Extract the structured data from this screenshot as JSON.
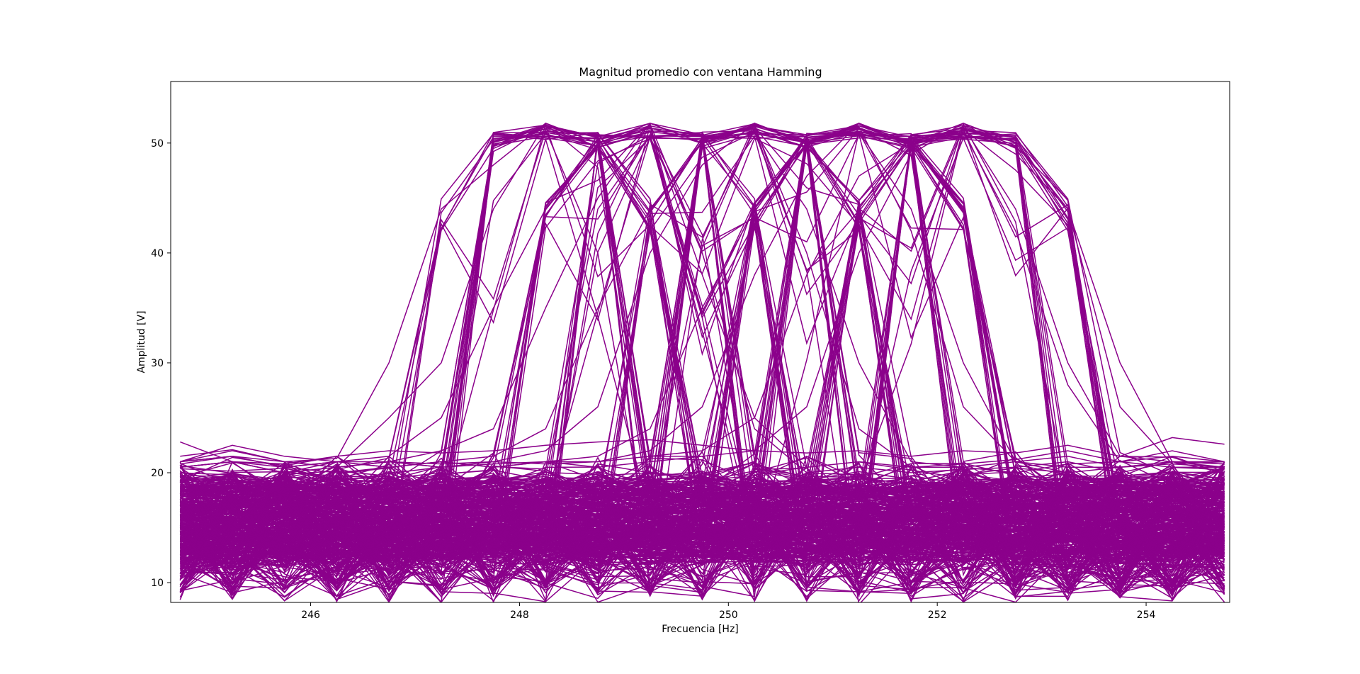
{
  "chart_data": {
    "type": "line",
    "title": "Magnitud promedio con ventana Hamming",
    "xlabel": "Frecuencia [Hz]",
    "ylabel": "Amplitud [V]",
    "x": [
      244.75,
      245.25,
      245.75,
      246.25,
      246.75,
      247.25,
      247.75,
      248.25,
      248.75,
      249.25,
      249.75,
      250.25,
      250.75,
      251.25,
      251.75,
      252.25,
      252.75,
      253.25,
      253.75,
      254.25,
      254.75
    ],
    "xlim": [
      244.66,
      254.8
    ],
    "ylim": [
      8.2,
      55.6
    ],
    "xticks": [
      246,
      248,
      250,
      252,
      254
    ],
    "yticks": [
      10,
      20,
      30,
      40,
      50
    ],
    "grid": false,
    "line_color": "#8b008b",
    "peak_frequencies": [
      248.25,
      249.25,
      250.25,
      251.25,
      252.25
    ],
    "peak_amplitude": 51.8,
    "series_count": 400,
    "series": [
      {
        "values": [
          21.5,
          22.1,
          21.0,
          21.3,
          30.0,
          44.0,
          48.0,
          51.8,
          50.0,
          51.5,
          38.0,
          25.0,
          20.5,
          21.0,
          20.5,
          20.8,
          21.2,
          22.0,
          21.0,
          22.0,
          21.0
        ]
      },
      {
        "values": [
          20.5,
          21.0,
          20.0,
          20.5,
          25.0,
          30.0,
          44.0,
          51.8,
          50.0,
          51.0,
          40.0,
          24.0,
          20.0,
          20.5,
          20.0,
          20.3,
          20.5,
          21.0,
          20.0,
          21.0,
          20.0
        ]
      },
      {
        "values": [
          21.0,
          22.5,
          21.5,
          21.0,
          21.5,
          25.0,
          35.0,
          44.0,
          50.0,
          51.8,
          50.0,
          51.5,
          40.0,
          24.0,
          20.5,
          20.5,
          20.0,
          20.8,
          21.0,
          21.5,
          21.0
        ]
      },
      {
        "values": [
          20.8,
          21.5,
          20.5,
          21.0,
          21.0,
          22.0,
          24.0,
          35.0,
          45.0,
          51.8,
          50.0,
          51.0,
          44.0,
          30.0,
          21.0,
          20.5,
          21.0,
          20.0,
          20.5,
          20.8,
          20.5
        ]
      },
      {
        "values": [
          20.5,
          21.0,
          20.5,
          20.0,
          20.5,
          21.0,
          21.5,
          24.0,
          35.0,
          44.0,
          50.0,
          51.8,
          50.0,
          51.0,
          44.0,
          30.0,
          21.0,
          20.5,
          20.5,
          21.0,
          20.8
        ]
      },
      {
        "values": [
          21.0,
          21.5,
          21.0,
          20.5,
          21.0,
          20.8,
          21.0,
          22.0,
          26.0,
          40.0,
          48.0,
          51.8,
          50.0,
          51.5,
          42.0,
          26.0,
          21.0,
          21.5,
          20.5,
          21.0,
          21.0
        ]
      },
      {
        "values": [
          20.5,
          21.0,
          20.0,
          20.5,
          21.0,
          20.5,
          20.8,
          21.0,
          21.5,
          24.0,
          35.0,
          44.0,
          50.0,
          51.8,
          50.0,
          51.0,
          42.0,
          28.0,
          21.0,
          20.5,
          20.5
        ]
      },
      {
        "values": [
          21.0,
          21.5,
          20.5,
          21.0,
          20.5,
          21.0,
          20.5,
          21.0,
          21.0,
          22.0,
          26.0,
          38.0,
          47.0,
          51.8,
          50.0,
          51.5,
          44.0,
          30.0,
          21.5,
          21.0,
          20.8
        ]
      },
      {
        "values": [
          21.0,
          22.0,
          21.0,
          20.5,
          21.0,
          20.5,
          21.0,
          20.8,
          21.0,
          21.5,
          22.0,
          25.0,
          38.0,
          47.0,
          50.0,
          51.8,
          50.0,
          44.0,
          30.0,
          21.0,
          20.5
        ]
      },
      {
        "values": [
          20.5,
          21.0,
          20.0,
          21.0,
          20.5,
          21.0,
          20.5,
          21.0,
          20.5,
          21.0,
          21.5,
          22.0,
          26.0,
          40.0,
          49.0,
          51.8,
          49.0,
          44.0,
          26.0,
          20.8,
          21.0
        ]
      },
      {
        "values": [
          22.8,
          21.0,
          20.8,
          21.5,
          22.0,
          21.8,
          22.0,
          22.5,
          22.8,
          23.0,
          22.5,
          22.0,
          21.8,
          22.0,
          21.5,
          22.0,
          21.8,
          22.5,
          21.5,
          23.2,
          22.6
        ]
      }
    ],
    "noise_band": {
      "min": 8.2,
      "max": 21.5,
      "typical_min": 12.5,
      "typical_max": 19.0
    }
  }
}
